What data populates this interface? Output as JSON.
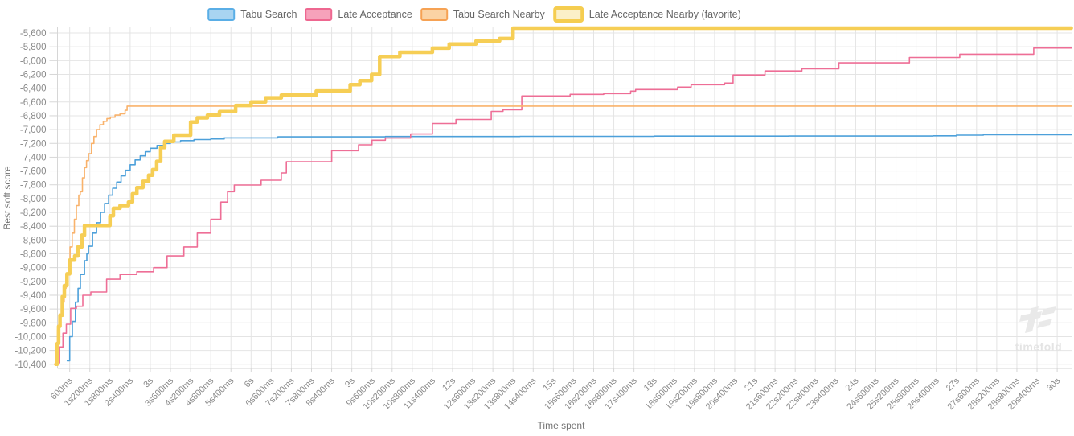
{
  "legend": {
    "items": [
      {
        "label": "Tabu Search",
        "fill": "#a9d4f1",
        "border": "#5aaee6",
        "emphasis": false
      },
      {
        "label": "Late Acceptance",
        "fill": "#f6a2bb",
        "border": "#ee6790",
        "emphasis": false
      },
      {
        "label": "Tabu Search Nearby",
        "fill": "#fbd3a4",
        "border": "#f6a254",
        "emphasis": false
      },
      {
        "label": "Late Acceptance Nearby (favorite)",
        "fill": "#fbf0c8",
        "border": "#f5cd50",
        "emphasis": true
      }
    ]
  },
  "watermark": {
    "label": "timefold"
  },
  "chart_data": {
    "type": "line",
    "title": "",
    "xlabel": "Time spent",
    "ylabel": "Best soft score",
    "grid": true,
    "legend_position": "top",
    "x_unit": "ms",
    "x_tick_interval_ms": 600,
    "xlim_ms": [
      0,
      30420
    ],
    "ylim": [
      -10460,
      -5500
    ],
    "y_tick_step": 200,
    "y_ticks": [
      -5600,
      -5800,
      -6000,
      -6200,
      -6400,
      -6600,
      -6800,
      -7000,
      -7200,
      -7400,
      -7600,
      -7800,
      -8000,
      -8200,
      -8400,
      -8600,
      -8800,
      -9000,
      -9200,
      -9400,
      -9600,
      -9800,
      -10000,
      -10200,
      -10400
    ],
    "x_tick_labels": [
      "600ms",
      "1s200ms",
      "1s800ms",
      "2s400ms",
      "3s",
      "3s600ms",
      "4s200ms",
      "4s800ms",
      "5s400ms",
      "6s",
      "6s600ms",
      "7s200ms",
      "7s800ms",
      "8s400ms",
      "9s",
      "9s600ms",
      "10s200ms",
      "10s800ms",
      "11s400ms",
      "12s",
      "12s600ms",
      "13s200ms",
      "13s800ms",
      "14s400ms",
      "15s",
      "15s600ms",
      "16s200ms",
      "16s800ms",
      "17s400ms",
      "18s",
      "18s600ms",
      "19s200ms",
      "19s800ms",
      "20s400ms",
      "21s",
      "21s600ms",
      "22s200ms",
      "22s800ms",
      "23s400ms",
      "24s",
      "24s600ms",
      "25s200ms",
      "25s800ms",
      "26s400ms",
      "27s",
      "27s600ms",
      "28s200ms",
      "28s800ms",
      "29s400ms",
      "30s"
    ],
    "series": [
      {
        "name": "Tabu Search",
        "color": "#4da0da",
        "width": 1.6,
        "points": [
          [
            530,
            -10350
          ],
          [
            600,
            -10000
          ],
          [
            680,
            -9780
          ],
          [
            770,
            -9500
          ],
          [
            850,
            -9300
          ],
          [
            920,
            -9100
          ],
          [
            1040,
            -8900
          ],
          [
            1110,
            -8800
          ],
          [
            1160,
            -8690
          ],
          [
            1280,
            -8500
          ],
          [
            1400,
            -8350
          ],
          [
            1520,
            -8200
          ],
          [
            1640,
            -8070
          ],
          [
            1760,
            -7950
          ],
          [
            1880,
            -7850
          ],
          [
            2000,
            -7760
          ],
          [
            2130,
            -7670
          ],
          [
            2260,
            -7590
          ],
          [
            2400,
            -7510
          ],
          [
            2550,
            -7440
          ],
          [
            2700,
            -7380
          ],
          [
            2850,
            -7320
          ],
          [
            3000,
            -7270
          ],
          [
            3200,
            -7230
          ],
          [
            3400,
            -7200
          ],
          [
            3600,
            -7180
          ],
          [
            3900,
            -7160
          ],
          [
            4300,
            -7145
          ],
          [
            4800,
            -7135
          ],
          [
            5200,
            -7120
          ],
          [
            6800,
            -7105
          ],
          [
            10000,
            -7100
          ],
          [
            14000,
            -7098
          ],
          [
            18000,
            -7095
          ],
          [
            22000,
            -7093
          ],
          [
            26300,
            -7090
          ],
          [
            27000,
            -7080
          ],
          [
            27800,
            -7075
          ],
          [
            30420,
            -7073
          ]
        ]
      },
      {
        "name": "Late Acceptance",
        "color": "#ee6e96",
        "width": 1.6,
        "points": [
          [
            200,
            -10380
          ],
          [
            300,
            -10150
          ],
          [
            400,
            -9950
          ],
          [
            500,
            -9820
          ],
          [
            630,
            -9590
          ],
          [
            800,
            -9560
          ],
          [
            990,
            -9400
          ],
          [
            1230,
            -9354
          ],
          [
            1700,
            -9168
          ],
          [
            2100,
            -9100
          ],
          [
            2600,
            -9060
          ],
          [
            3100,
            -9000
          ],
          [
            3500,
            -8830
          ],
          [
            4000,
            -8700
          ],
          [
            4400,
            -8500
          ],
          [
            4800,
            -8300
          ],
          [
            5100,
            -8050
          ],
          [
            5300,
            -7900
          ],
          [
            5500,
            -7803
          ],
          [
            6300,
            -7733
          ],
          [
            6900,
            -7628
          ],
          [
            7050,
            -7465
          ],
          [
            8400,
            -7306
          ],
          [
            9200,
            -7220
          ],
          [
            9600,
            -7154
          ],
          [
            10000,
            -7122
          ],
          [
            10750,
            -7064
          ],
          [
            11400,
            -6911
          ],
          [
            12100,
            -6853
          ],
          [
            13150,
            -6736
          ],
          [
            13500,
            -6712
          ],
          [
            14060,
            -6513
          ],
          [
            15500,
            -6490
          ],
          [
            16500,
            -6478
          ],
          [
            17300,
            -6443
          ],
          [
            17450,
            -6420
          ],
          [
            18700,
            -6385
          ],
          [
            19100,
            -6349
          ],
          [
            20100,
            -6326
          ],
          [
            20350,
            -6209
          ],
          [
            21300,
            -6150
          ],
          [
            22400,
            -6119
          ],
          [
            23500,
            -6033
          ],
          [
            25600,
            -5955
          ],
          [
            27100,
            -5908
          ],
          [
            29300,
            -5818
          ],
          [
            30420,
            -5810
          ]
        ]
      },
      {
        "name": "Tabu Search Nearby",
        "color": "#f9b26b",
        "width": 1.6,
        "points": [
          [
            145,
            -10400
          ],
          [
            195,
            -10150
          ],
          [
            240,
            -9900
          ],
          [
            290,
            -9750
          ],
          [
            315,
            -9700
          ],
          [
            360,
            -9500
          ],
          [
            435,
            -9300
          ],
          [
            490,
            -9100
          ],
          [
            555,
            -8900
          ],
          [
            610,
            -8700
          ],
          [
            675,
            -8500
          ],
          [
            740,
            -8300
          ],
          [
            800,
            -8100
          ],
          [
            870,
            -7950
          ],
          [
            915,
            -7900
          ],
          [
            980,
            -7700
          ],
          [
            1040,
            -7550
          ],
          [
            1100,
            -7450
          ],
          [
            1160,
            -7350
          ],
          [
            1250,
            -7200
          ],
          [
            1320,
            -7100
          ],
          [
            1400,
            -7000
          ],
          [
            1500,
            -6930
          ],
          [
            1600,
            -6880
          ],
          [
            1710,
            -6840
          ],
          [
            1810,
            -6820
          ],
          [
            1950,
            -6790
          ],
          [
            2100,
            -6770
          ],
          [
            2250,
            -6720
          ],
          [
            2310,
            -6660
          ],
          [
            30420,
            -6660
          ]
        ]
      },
      {
        "name": "Late Acceptance Nearby (favorite)",
        "color": "#f6ce55",
        "width": 4.5,
        "points": [
          [
            190,
            -10400
          ],
          [
            230,
            -10100
          ],
          [
            270,
            -9850
          ],
          [
            310,
            -9690
          ],
          [
            380,
            -9420
          ],
          [
            440,
            -9260
          ],
          [
            520,
            -9090
          ],
          [
            600,
            -8890
          ],
          [
            750,
            -8830
          ],
          [
            845,
            -8700
          ],
          [
            965,
            -8530
          ],
          [
            1040,
            -8390
          ],
          [
            1800,
            -8250
          ],
          [
            1900,
            -8140
          ],
          [
            2100,
            -8100
          ],
          [
            2350,
            -8050
          ],
          [
            2470,
            -7930
          ],
          [
            2600,
            -7840
          ],
          [
            2780,
            -7750
          ],
          [
            2950,
            -7660
          ],
          [
            3070,
            -7580
          ],
          [
            3190,
            -7460
          ],
          [
            3310,
            -7260
          ],
          [
            3430,
            -7170
          ],
          [
            3700,
            -7080
          ],
          [
            4200,
            -6890
          ],
          [
            4400,
            -6830
          ],
          [
            4700,
            -6790
          ],
          [
            5060,
            -6740
          ],
          [
            5540,
            -6650
          ],
          [
            6000,
            -6600
          ],
          [
            6430,
            -6540
          ],
          [
            6900,
            -6500
          ],
          [
            7940,
            -6440
          ],
          [
            8950,
            -6350
          ],
          [
            9240,
            -6290
          ],
          [
            9590,
            -6200
          ],
          [
            9830,
            -5940
          ],
          [
            10430,
            -5880
          ],
          [
            11400,
            -5820
          ],
          [
            11900,
            -5760
          ],
          [
            12700,
            -5715
          ],
          [
            13400,
            -5680
          ],
          [
            13800,
            -5530
          ],
          [
            30420,
            -5530
          ]
        ]
      }
    ]
  }
}
